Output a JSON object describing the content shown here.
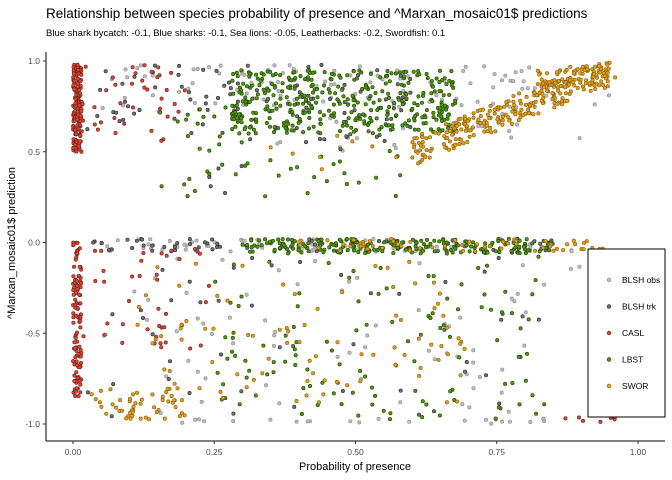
{
  "title": "Relationship between species probability of presence and ^Marxan_mosaic01$ predictions",
  "subtitle": "Blue shark bycatch: -0.1, Blue sharks: -0.1, Sea lions: -0.05, Leatherbacks: -0.2, Swordfish: 0.1",
  "chart_data": {
    "type": "scatter",
    "xlabel": "Probability of presence",
    "ylabel": "^Marxan_mosaic01$ prediction",
    "xlim": [
      0,
      1
    ],
    "ylim": [
      -1.0,
      1.0
    ],
    "xticks": [
      "0.00",
      "0.25",
      "0.50",
      "0.75",
      "1.00"
    ],
    "yticks": [
      "-1.0",
      "-0.5",
      "0.0",
      "0.5",
      "1.0"
    ],
    "grid": false,
    "legend_position": "right",
    "series": [
      {
        "name": "BLSH obs",
        "color": "#bdbdbd",
        "stroke": "#8c8c8c",
        "clusters": [
          {
            "x": [
              0.05,
              0.85
            ],
            "y": [
              0.72,
              0.98
            ],
            "n": 90
          },
          {
            "x": [
              0.35,
              0.95
            ],
            "y": [
              0.5,
              0.98
            ],
            "n": 40
          },
          {
            "x": [
              0.05,
              0.92
            ],
            "y": [
              -0.05,
              0.02
            ],
            "n": 80
          },
          {
            "x": [
              0.05,
              0.9
            ],
            "y": [
              -0.98,
              -0.05
            ],
            "n": 70
          },
          {
            "x": [
              0.15,
              0.85
            ],
            "y": [
              -1.0,
              -0.97
            ],
            "n": 20
          }
        ]
      },
      {
        "name": "BLSH trk",
        "color": "#6e6e6e",
        "stroke": "#2b2b2b",
        "clusters": [
          {
            "x": [
              0.02,
              0.6
            ],
            "y": [
              0.55,
              0.98
            ],
            "n": 100
          },
          {
            "x": [
              0.02,
              0.85
            ],
            "y": [
              -0.05,
              0.02
            ],
            "n": 70
          },
          {
            "x": [
              0.02,
              0.85
            ],
            "y": [
              -0.98,
              -0.05
            ],
            "n": 45
          },
          {
            "x": [
              0.2,
              0.35
            ],
            "y": [
              0.2,
              0.45
            ],
            "n": 5
          }
        ]
      },
      {
        "name": "CASL",
        "color": "#d24a3a",
        "stroke": "#7a1a12",
        "clusters": [
          {
            "x": [
              0.0,
              0.015
            ],
            "y": [
              0.5,
              0.98
            ],
            "n": 160
          },
          {
            "x": [
              0.0,
              0.015
            ],
            "y": [
              -0.85,
              0.0
            ],
            "n": 110
          },
          {
            "x": [
              0.01,
              0.2
            ],
            "y": [
              0.55,
              0.98
            ],
            "n": 40
          },
          {
            "x": [
              0.01,
              0.25
            ],
            "y": [
              -0.6,
              0.0
            ],
            "n": 40
          },
          {
            "x": [
              0.85,
              0.98
            ],
            "y": [
              -1.0,
              -0.95
            ],
            "n": 8
          }
        ]
      },
      {
        "name": "LBST",
        "color": "#4d9a0a",
        "stroke": "#1f3d00",
        "clusters": [
          {
            "x": [
              0.28,
              0.68
            ],
            "y": [
              0.6,
              0.95
            ],
            "n": 380
          },
          {
            "x": [
              0.15,
              0.6
            ],
            "y": [
              0.25,
              0.75
            ],
            "n": 60
          },
          {
            "x": [
              0.3,
              0.85
            ],
            "y": [
              -0.06,
              0.02
            ],
            "n": 200
          },
          {
            "x": [
              0.25,
              0.85
            ],
            "y": [
              -0.98,
              -0.05
            ],
            "n": 120
          }
        ]
      },
      {
        "name": "SWOR",
        "color": "#e0a11b",
        "stroke": "#8a5a00",
        "trend": {
          "x": [
            0.6,
            0.95
          ],
          "y0": 0.5,
          "y1": 0.95,
          "n": 260
        },
        "clusters": [
          {
            "x": [
              0.82,
              0.96
            ],
            "y": [
              0.85,
              0.97
            ],
            "n": 60
          },
          {
            "x": [
              0.03,
              0.2
            ],
            "y": [
              -0.98,
              -0.8
            ],
            "n": 50
          },
          {
            "x": [
              0.1,
              0.7
            ],
            "y": [
              -0.9,
              -0.1
            ],
            "n": 90
          },
          {
            "x": [
              0.4,
              0.95
            ],
            "y": [
              -0.05,
              0.02
            ],
            "n": 60
          },
          {
            "x": [
              0.3,
              0.7
            ],
            "y": [
              0.4,
              0.6
            ],
            "n": 10
          }
        ]
      }
    ]
  }
}
